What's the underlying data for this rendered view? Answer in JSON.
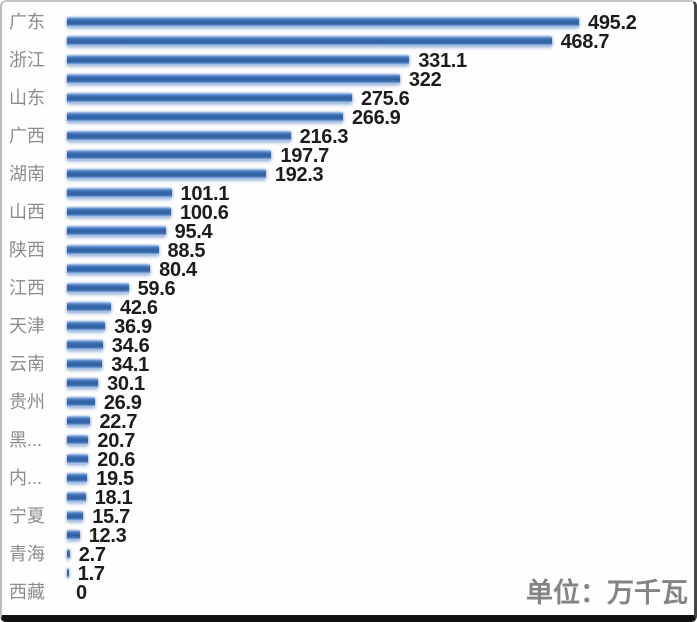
{
  "chart_data": {
    "type": "bar",
    "orientation": "horizontal",
    "unit_label": "单位：万千瓦",
    "xlim": [
      0,
      520
    ],
    "grid": false,
    "legend": false,
    "axis_label_note": "category axis shows every other label; hidden labels not visible in screenshot",
    "bar_color": "#3b6db5",
    "category_color": "#8c8c8c",
    "value_color": "#1c1c1c",
    "rows": [
      {
        "label": "广东",
        "value": 495.2,
        "display": "495.2"
      },
      {
        "label": "",
        "value": 468.7,
        "display": "468.7"
      },
      {
        "label": "浙江",
        "value": 331.1,
        "display": "331.1"
      },
      {
        "label": "",
        "value": 322,
        "display": "322"
      },
      {
        "label": "山东",
        "value": 275.6,
        "display": "275.6"
      },
      {
        "label": "",
        "value": 266.9,
        "display": "266.9"
      },
      {
        "label": "广西",
        "value": 216.3,
        "display": "216.3"
      },
      {
        "label": "",
        "value": 197.7,
        "display": "197.7"
      },
      {
        "label": "湖南",
        "value": 192.3,
        "display": "192.3"
      },
      {
        "label": "",
        "value": 101.1,
        "display": "101.1"
      },
      {
        "label": "山西",
        "value": 100.6,
        "display": "100.6"
      },
      {
        "label": "",
        "value": 95.4,
        "display": "95.4"
      },
      {
        "label": "陕西",
        "value": 88.5,
        "display": "88.5"
      },
      {
        "label": "",
        "value": 80.4,
        "display": "80.4"
      },
      {
        "label": "江西",
        "value": 59.6,
        "display": "59.6"
      },
      {
        "label": "",
        "value": 42.6,
        "display": "42.6"
      },
      {
        "label": "天津",
        "value": 36.9,
        "display": "36.9"
      },
      {
        "label": "",
        "value": 34.6,
        "display": "34.6"
      },
      {
        "label": "云南",
        "value": 34.1,
        "display": "34.1"
      },
      {
        "label": "",
        "value": 30.1,
        "display": "30.1"
      },
      {
        "label": "贵州",
        "value": 26.9,
        "display": "26.9"
      },
      {
        "label": "",
        "value": 22.7,
        "display": "22.7"
      },
      {
        "label": "黑...",
        "value": 20.7,
        "display": "20.7"
      },
      {
        "label": "",
        "value": 20.6,
        "display": "20.6"
      },
      {
        "label": "内...",
        "value": 19.5,
        "display": "19.5"
      },
      {
        "label": "",
        "value": 18.1,
        "display": "18.1"
      },
      {
        "label": "宁夏",
        "value": 15.7,
        "display": "15.7"
      },
      {
        "label": "",
        "value": 12.3,
        "display": "12.3"
      },
      {
        "label": "青海",
        "value": 2.7,
        "display": "2.7"
      },
      {
        "label": "",
        "value": 1.7,
        "display": "1.7"
      },
      {
        "label": "西藏",
        "value": 0,
        "display": "0"
      }
    ]
  }
}
